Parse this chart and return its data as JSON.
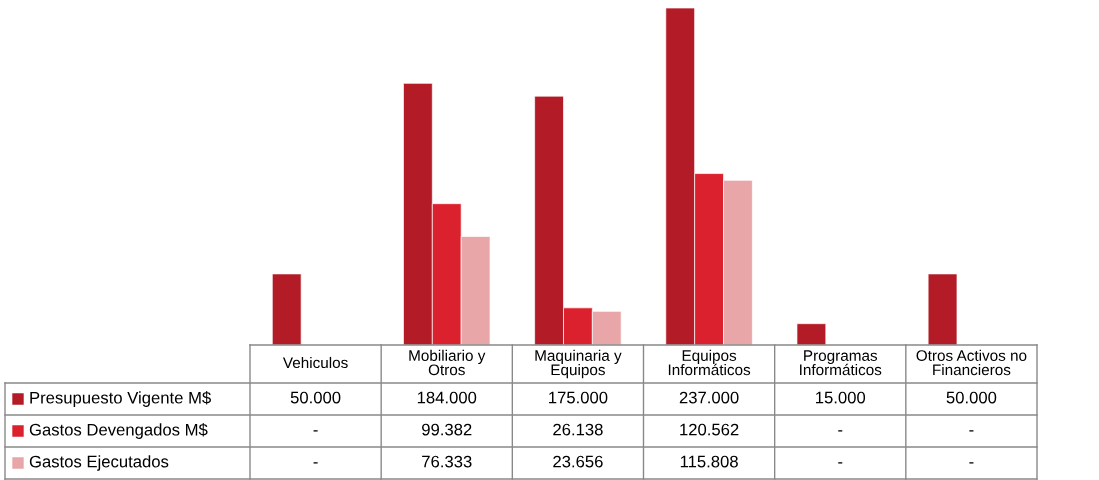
{
  "chart_data": {
    "type": "bar",
    "categories": [
      "Vehiculos",
      "Mobiliario y Otros",
      "Maquinaria y Equipos",
      "Equipos Informáticos",
      "Programas Informáticos",
      "Otros Activos no Financieros"
    ],
    "series": [
      {
        "name": "Presupuesto Vigente M$",
        "color": "#b31b27",
        "values": [
          50000,
          184000,
          175000,
          237000,
          15000,
          50000
        ],
        "value_labels": [
          "50.000",
          "184.000",
          "175.000",
          "237.000",
          "15.000",
          "50.000"
        ]
      },
      {
        "name": "Gastos Devengados M$",
        "color": "#da212d",
        "values": [
          null,
          99382,
          26138,
          120562,
          null,
          null
        ],
        "value_labels": [
          "-",
          "99.382",
          "26.138",
          "120.562",
          "-",
          "-"
        ]
      },
      {
        "name": "Gastos Ejecutados",
        "color": "#e8a6a8",
        "values": [
          null,
          76333,
          23656,
          115808,
          null,
          null
        ],
        "value_labels": [
          "-",
          "76.333",
          "23.656",
          "115.808",
          "-",
          "-"
        ]
      }
    ],
    "legend": "bottom left"
  }
}
